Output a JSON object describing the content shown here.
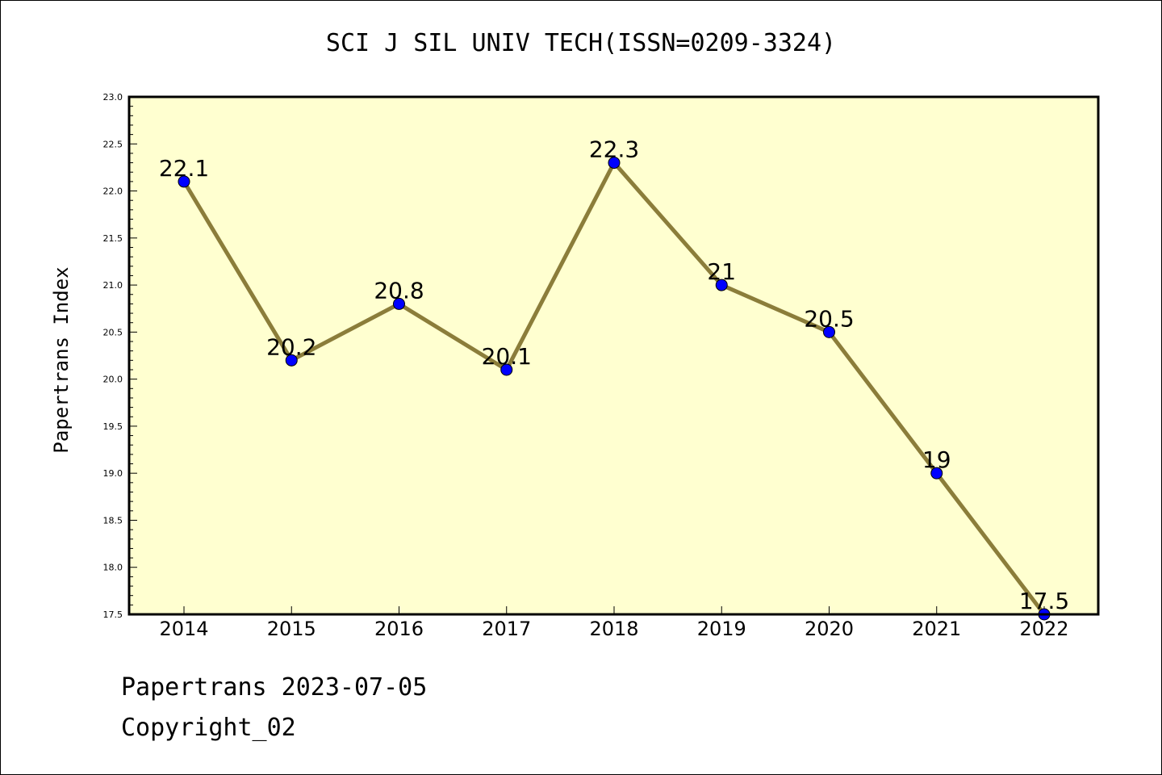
{
  "header": {
    "title": "SCI J SIL UNIV TECH(ISSN=0209-3324)"
  },
  "footer": {
    "line1": "Papertrans 2023-07-05",
    "line2": "Copyright_02"
  },
  "colors": {
    "plot_background": "#ffffd0",
    "line": "#8b7d3a",
    "marker": "#0000ff"
  },
  "chart_data": {
    "type": "line",
    "title": "SCI J SIL UNIV TECH(ISSN=0209-3324)",
    "xlabel": "",
    "ylabel": "Papertrans Index",
    "categories": [
      "2014",
      "2015",
      "2016",
      "2017",
      "2018",
      "2019",
      "2020",
      "2021",
      "2022"
    ],
    "values": [
      22.1,
      20.2,
      20.8,
      20.1,
      22.3,
      21,
      20.5,
      19,
      17.5
    ],
    "data_labels": [
      "22.1",
      "20.2",
      "20.8",
      "20.1",
      "22.3",
      "21",
      "20.5",
      "19",
      "17.5"
    ],
    "ylim": [
      17.5,
      23.0
    ],
    "y_ticks": [
      "17.5",
      "18.0",
      "18.5",
      "19.0",
      "19.5",
      "20.0",
      "20.5",
      "21.0",
      "21.5",
      "22.0",
      "22.5",
      "23.0"
    ],
    "grid": false,
    "legend": "none"
  }
}
